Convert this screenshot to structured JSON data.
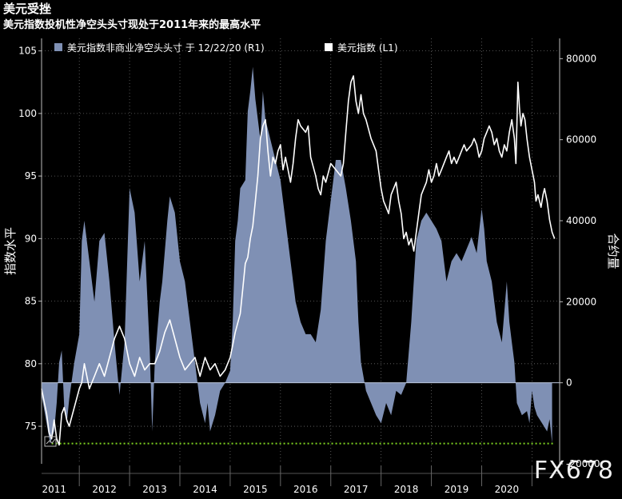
{
  "title": "美元受挫",
  "subtitle": "美元指数投机性净空头头寸现处于2011年来的最高水平",
  "watermark": "FX678",
  "chart_data": {
    "type": "area+line",
    "title": "美元受挫",
    "subtitle": "美元指数投机性净空头头寸现处于2011年来的最高水平",
    "ylabel_left": "指数水平",
    "ylabel_right": "合约量",
    "legend": [
      {
        "name": "美元指数非商业净空头头寸 于 12/22/20 (R1)",
        "color": "#7f90b4"
      },
      {
        "name": "美元指数 (L1)",
        "color": "#ffffff"
      }
    ],
    "legend_position": "top",
    "grid": true,
    "x_range": [
      2010.75,
      2021.05
    ],
    "x_ticks": [
      "2011",
      "2012",
      "2013",
      "2014",
      "2015",
      "2016",
      "2017",
      "2018",
      "2019",
      "2020"
    ],
    "ylim_left": [
      72,
      106
    ],
    "yticks_left": [
      75,
      80,
      85,
      90,
      95,
      100,
      105
    ],
    "ylim_right": [
      -20000,
      85000
    ],
    "yticks_right": [
      -20000,
      0,
      20000,
      40000,
      60000,
      80000
    ],
    "reference_line": {
      "value": -15000,
      "axis": "right",
      "color": "#7ed321",
      "style": "dotted"
    },
    "series": [
      {
        "name": "美元指数非商业净空头头寸 于 12/22/20 (R1)",
        "axis": "right",
        "kind": "area",
        "points": [
          [
            2010.75,
            -3000
          ],
          [
            2010.85,
            -10000
          ],
          [
            2010.92,
            -15000
          ],
          [
            2011.0,
            -12000
          ],
          [
            2011.05,
            -5000
          ],
          [
            2011.1,
            5000
          ],
          [
            2011.15,
            8000
          ],
          [
            2011.2,
            -6000
          ],
          [
            2011.25,
            -10000
          ],
          [
            2011.3,
            -4000
          ],
          [
            2011.4,
            5000
          ],
          [
            2011.5,
            12000
          ],
          [
            2011.55,
            35000
          ],
          [
            2011.6,
            40000
          ],
          [
            2011.7,
            30000
          ],
          [
            2011.8,
            20000
          ],
          [
            2011.9,
            35000
          ],
          [
            2012.0,
            37000
          ],
          [
            2012.1,
            25000
          ],
          [
            2012.2,
            10000
          ],
          [
            2012.3,
            -3000
          ],
          [
            2012.4,
            10000
          ],
          [
            2012.5,
            48000
          ],
          [
            2012.6,
            42000
          ],
          [
            2012.7,
            25000
          ],
          [
            2012.8,
            35000
          ],
          [
            2012.9,
            8000
          ],
          [
            2012.95,
            -12000
          ],
          [
            2013.0,
            5000
          ],
          [
            2013.1,
            20000
          ],
          [
            2013.15,
            25000
          ],
          [
            2013.25,
            40000
          ],
          [
            2013.3,
            46000
          ],
          [
            2013.4,
            42000
          ],
          [
            2013.5,
            30000
          ],
          [
            2013.6,
            25000
          ],
          [
            2013.7,
            15000
          ],
          [
            2013.8,
            5000
          ],
          [
            2013.9,
            -5000
          ],
          [
            2014.0,
            -10000
          ],
          [
            2014.05,
            -5000
          ],
          [
            2014.1,
            -12000
          ],
          [
            2014.2,
            -8000
          ],
          [
            2014.3,
            -2000
          ],
          [
            2014.4,
            0
          ],
          [
            2014.5,
            3000
          ],
          [
            2014.55,
            15000
          ],
          [
            2014.6,
            35000
          ],
          [
            2014.65,
            40000
          ],
          [
            2014.7,
            48000
          ],
          [
            2014.8,
            50000
          ],
          [
            2014.85,
            67000
          ],
          [
            2014.9,
            72000
          ],
          [
            2014.95,
            78000
          ],
          [
            2015.0,
            70000
          ],
          [
            2015.1,
            60000
          ],
          [
            2015.15,
            72000
          ],
          [
            2015.2,
            65000
          ],
          [
            2015.3,
            60000
          ],
          [
            2015.4,
            55000
          ],
          [
            2015.5,
            50000
          ],
          [
            2015.6,
            40000
          ],
          [
            2015.7,
            30000
          ],
          [
            2015.8,
            20000
          ],
          [
            2015.9,
            15000
          ],
          [
            2016.0,
            12000
          ],
          [
            2016.1,
            12000
          ],
          [
            2016.2,
            10000
          ],
          [
            2016.3,
            18000
          ],
          [
            2016.4,
            35000
          ],
          [
            2016.5,
            45000
          ],
          [
            2016.55,
            50000
          ],
          [
            2016.6,
            55000
          ],
          [
            2016.7,
            55000
          ],
          [
            2016.8,
            48000
          ],
          [
            2016.9,
            40000
          ],
          [
            2017.0,
            30000
          ],
          [
            2017.05,
            15000
          ],
          [
            2017.1,
            5000
          ],
          [
            2017.2,
            -2000
          ],
          [
            2017.3,
            -5000
          ],
          [
            2017.4,
            -8000
          ],
          [
            2017.5,
            -10000
          ],
          [
            2017.6,
            -5000
          ],
          [
            2017.7,
            -8000
          ],
          [
            2017.8,
            -2000
          ],
          [
            2017.9,
            -3000
          ],
          [
            2018.0,
            0
          ],
          [
            2018.1,
            15000
          ],
          [
            2018.2,
            35000
          ],
          [
            2018.3,
            40000
          ],
          [
            2018.4,
            42000
          ],
          [
            2018.5,
            40000
          ],
          [
            2018.6,
            38000
          ],
          [
            2018.7,
            35000
          ],
          [
            2018.8,
            25000
          ],
          [
            2018.9,
            30000
          ],
          [
            2019.0,
            32000
          ],
          [
            2019.1,
            30000
          ],
          [
            2019.2,
            33000
          ],
          [
            2019.3,
            36000
          ],
          [
            2019.4,
            32000
          ],
          [
            2019.5,
            43000
          ],
          [
            2019.55,
            38000
          ],
          [
            2019.6,
            30000
          ],
          [
            2019.7,
            25000
          ],
          [
            2019.8,
            15000
          ],
          [
            2019.9,
            10000
          ],
          [
            2020.0,
            25000
          ],
          [
            2020.05,
            15000
          ],
          [
            2020.1,
            10000
          ],
          [
            2020.15,
            5000
          ],
          [
            2020.2,
            -5000
          ],
          [
            2020.3,
            -8000
          ],
          [
            2020.4,
            -7000
          ],
          [
            2020.45,
            -10000
          ],
          [
            2020.5,
            -2000
          ],
          [
            2020.55,
            -6000
          ],
          [
            2020.6,
            -8000
          ],
          [
            2020.7,
            -10000
          ],
          [
            2020.8,
            -12000
          ],
          [
            2020.85,
            -9000
          ],
          [
            2020.9,
            -15000
          ]
        ]
      },
      {
        "name": "美元指数 (L1)",
        "axis": "left",
        "kind": "line",
        "points": [
          [
            2010.75,
            78.0
          ],
          [
            2010.8,
            77.0
          ],
          [
            2010.85,
            76.0
          ],
          [
            2010.9,
            74.5
          ],
          [
            2010.95,
            74.0
          ],
          [
            2011.0,
            75.5
          ],
          [
            2011.05,
            74.0
          ],
          [
            2011.1,
            73.5
          ],
          [
            2011.15,
            76.0
          ],
          [
            2011.2,
            76.5
          ],
          [
            2011.25,
            75.5
          ],
          [
            2011.3,
            75.0
          ],
          [
            2011.4,
            76.5
          ],
          [
            2011.5,
            78.0
          ],
          [
            2011.55,
            78.5
          ],
          [
            2011.6,
            80.0
          ],
          [
            2011.7,
            78.0
          ],
          [
            2011.8,
            79.0
          ],
          [
            2011.9,
            80.0
          ],
          [
            2012.0,
            79.0
          ],
          [
            2012.1,
            80.5
          ],
          [
            2012.2,
            82.0
          ],
          [
            2012.3,
            83.0
          ],
          [
            2012.4,
            82.0
          ],
          [
            2012.5,
            80.0
          ],
          [
            2012.6,
            79.0
          ],
          [
            2012.7,
            80.5
          ],
          [
            2012.8,
            79.5
          ],
          [
            2012.9,
            80.0
          ],
          [
            2013.0,
            80.0
          ],
          [
            2013.1,
            81.0
          ],
          [
            2013.2,
            82.5
          ],
          [
            2013.3,
            83.5
          ],
          [
            2013.4,
            82.0
          ],
          [
            2013.5,
            80.5
          ],
          [
            2013.6,
            79.5
          ],
          [
            2013.7,
            80.0
          ],
          [
            2013.8,
            80.5
          ],
          [
            2013.9,
            79.0
          ],
          [
            2014.0,
            80.5
          ],
          [
            2014.1,
            79.5
          ],
          [
            2014.2,
            80.0
          ],
          [
            2014.3,
            79.0
          ],
          [
            2014.4,
            79.5
          ],
          [
            2014.5,
            80.5
          ],
          [
            2014.55,
            81.5
          ],
          [
            2014.6,
            82.5
          ],
          [
            2014.7,
            84.0
          ],
          [
            2014.75,
            86.0
          ],
          [
            2014.8,
            88.0
          ],
          [
            2014.85,
            88.5
          ],
          [
            2014.9,
            90.0
          ],
          [
            2014.95,
            91.0
          ],
          [
            2015.0,
            93.0
          ],
          [
            2015.05,
            95.0
          ],
          [
            2015.1,
            98.0
          ],
          [
            2015.15,
            99.0
          ],
          [
            2015.2,
            99.5
          ],
          [
            2015.25,
            97.0
          ],
          [
            2015.3,
            95.0
          ],
          [
            2015.35,
            96.5
          ],
          [
            2015.4,
            96.0
          ],
          [
            2015.45,
            97.0
          ],
          [
            2015.5,
            97.5
          ],
          [
            2015.55,
            95.5
          ],
          [
            2015.6,
            96.5
          ],
          [
            2015.7,
            94.5
          ],
          [
            2015.75,
            96.0
          ],
          [
            2015.8,
            98.0
          ],
          [
            2015.85,
            99.5
          ],
          [
            2015.9,
            99.0
          ],
          [
            2016.0,
            98.5
          ],
          [
            2016.05,
            99.0
          ],
          [
            2016.1,
            96.5
          ],
          [
            2016.2,
            95.0
          ],
          [
            2016.25,
            94.0
          ],
          [
            2016.3,
            93.5
          ],
          [
            2016.35,
            95.0
          ],
          [
            2016.4,
            94.5
          ],
          [
            2016.5,
            96.0
          ],
          [
            2016.6,
            95.5
          ],
          [
            2016.7,
            95.0
          ],
          [
            2016.75,
            96.0
          ],
          [
            2016.8,
            98.5
          ],
          [
            2016.85,
            101.0
          ],
          [
            2016.9,
            102.5
          ],
          [
            2016.95,
            103.0
          ],
          [
            2017.0,
            101.0
          ],
          [
            2017.05,
            100.0
          ],
          [
            2017.1,
            101.5
          ],
          [
            2017.15,
            100.0
          ],
          [
            2017.2,
            99.5
          ],
          [
            2017.3,
            98.0
          ],
          [
            2017.4,
            97.0
          ],
          [
            2017.45,
            95.5
          ],
          [
            2017.5,
            94.0
          ],
          [
            2017.55,
            93.0
          ],
          [
            2017.6,
            92.5
          ],
          [
            2017.65,
            92.0
          ],
          [
            2017.7,
            93.5
          ],
          [
            2017.8,
            94.5
          ],
          [
            2017.85,
            93.0
          ],
          [
            2017.9,
            92.0
          ],
          [
            2017.95,
            90.0
          ],
          [
            2018.0,
            90.5
          ],
          [
            2018.05,
            89.5
          ],
          [
            2018.1,
            90.0
          ],
          [
            2018.15,
            89.0
          ],
          [
            2018.2,
            90.5
          ],
          [
            2018.25,
            92.0
          ],
          [
            2018.3,
            93.5
          ],
          [
            2018.35,
            94.0
          ],
          [
            2018.4,
            94.5
          ],
          [
            2018.45,
            95.5
          ],
          [
            2018.5,
            94.5
          ],
          [
            2018.55,
            95.0
          ],
          [
            2018.6,
            96.0
          ],
          [
            2018.65,
            95.0
          ],
          [
            2018.7,
            95.5
          ],
          [
            2018.8,
            96.5
          ],
          [
            2018.85,
            97.0
          ],
          [
            2018.9,
            96.0
          ],
          [
            2018.95,
            96.5
          ],
          [
            2019.0,
            96.0
          ],
          [
            2019.05,
            96.5
          ],
          [
            2019.1,
            97.0
          ],
          [
            2019.15,
            97.5
          ],
          [
            2019.2,
            97.0
          ],
          [
            2019.3,
            97.5
          ],
          [
            2019.35,
            98.0
          ],
          [
            2019.4,
            97.5
          ],
          [
            2019.45,
            96.5
          ],
          [
            2019.5,
            97.0
          ],
          [
            2019.55,
            98.0
          ],
          [
            2019.6,
            98.5
          ],
          [
            2019.65,
            99.0
          ],
          [
            2019.7,
            98.5
          ],
          [
            2019.75,
            97.5
          ],
          [
            2019.8,
            98.0
          ],
          [
            2019.85,
            97.0
          ],
          [
            2019.9,
            96.5
          ],
          [
            2019.95,
            97.5
          ],
          [
            2020.0,
            97.0
          ],
          [
            2020.05,
            98.5
          ],
          [
            2020.1,
            99.5
          ],
          [
            2020.15,
            98.0
          ],
          [
            2020.18,
            96.0
          ],
          [
            2020.2,
            99.0
          ],
          [
            2020.22,
            102.5
          ],
          [
            2020.25,
            100.5
          ],
          [
            2020.28,
            99.0
          ],
          [
            2020.32,
            100.0
          ],
          [
            2020.36,
            99.5
          ],
          [
            2020.4,
            98.0
          ],
          [
            2020.45,
            96.5
          ],
          [
            2020.5,
            95.5
          ],
          [
            2020.55,
            94.5
          ],
          [
            2020.58,
            93.0
          ],
          [
            2020.62,
            93.5
          ],
          [
            2020.68,
            92.5
          ],
          [
            2020.72,
            93.5
          ],
          [
            2020.75,
            94.0
          ],
          [
            2020.8,
            93.0
          ],
          [
            2020.85,
            91.5
          ],
          [
            2020.9,
            90.5
          ],
          [
            2020.95,
            90.0
          ]
        ]
      }
    ]
  }
}
